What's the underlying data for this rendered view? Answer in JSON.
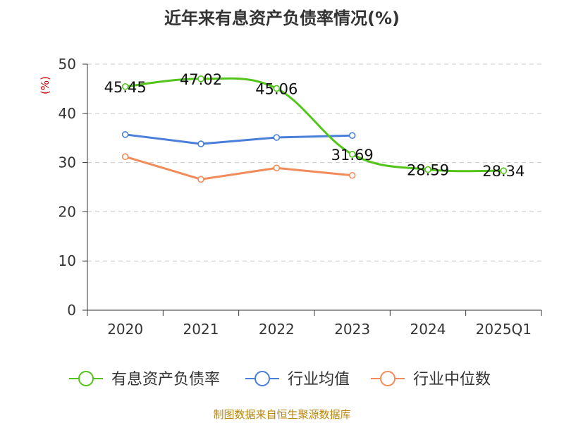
{
  "chart_data": {
    "type": "line",
    "title": "近年来有息资产负债率情况(%)",
    "ylabel": "(%)",
    "ylim": [
      0,
      50
    ],
    "yticks": [
      0,
      10,
      20,
      30,
      40,
      50
    ],
    "grid": true,
    "legend_position": "bottom",
    "categories": [
      "2020",
      "2021",
      "2022",
      "2023",
      "2024",
      "2025Q1"
    ],
    "series": [
      {
        "name": "有息资产负债率",
        "color": "#52c41a",
        "values": [
          45.45,
          47.02,
          45.06,
          31.69,
          28.59,
          28.34
        ],
        "labels": [
          "45.45",
          "47.02",
          "45.06",
          "31.69",
          "28.59",
          "28.34"
        ]
      },
      {
        "name": "行业均值",
        "color": "#4a7fd9",
        "values": [
          35.7,
          33.8,
          35.1,
          35.5,
          null,
          null
        ]
      },
      {
        "name": "行业中位数",
        "color": "#f28b5a",
        "values": [
          31.2,
          26.6,
          28.9,
          27.4,
          null,
          null
        ]
      }
    ]
  },
  "source": "制图数据来自恒生聚源数据库"
}
